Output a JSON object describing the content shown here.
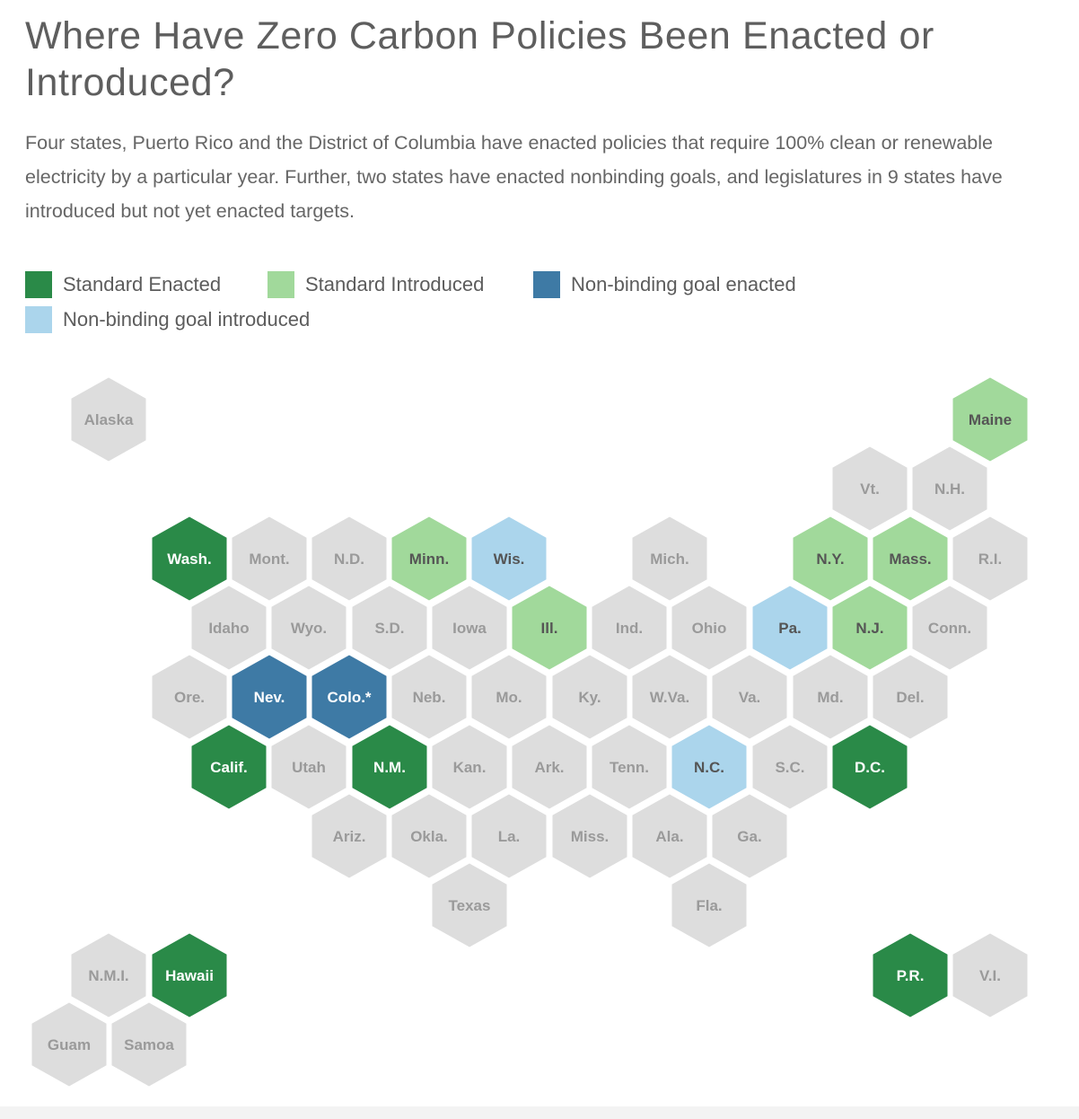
{
  "title": "Where Have Zero Carbon Policies Been Enacted or Introduced?",
  "description": "Four states, Puerto Rico and the District of Columbia have enacted policies that require 100% clean or renewable electricity by a particular year. Further, two states have enacted nonbinding goals, and legislatures in 9 states have introduced but not yet enacted targets.",
  "legend": [
    {
      "key": "enacted",
      "label": "Standard Enacted",
      "color": "#2a8a48"
    },
    {
      "key": "introduced",
      "label": "Standard Introduced",
      "color": "#a1d99b"
    },
    {
      "key": "goal_enacted",
      "label": "Non-binding goal enacted",
      "color": "#3e7aa5"
    },
    {
      "key": "goal_introduced",
      "label": "Non-binding goal introduced",
      "color": "#abd5ec"
    }
  ],
  "default_color": "#dddddd",
  "label_colors": {
    "dark_bg": "#ffffff",
    "light_bg": "#555555",
    "gray_bg": "#9a9a9a"
  },
  "states": [
    {
      "label": "Alaska",
      "status": "none"
    },
    {
      "label": "Maine",
      "status": "introduced"
    },
    {
      "label": "Vt.",
      "status": "none"
    },
    {
      "label": "N.H.",
      "status": "none"
    },
    {
      "label": "Wash.",
      "status": "enacted"
    },
    {
      "label": "Mont.",
      "status": "none"
    },
    {
      "label": "N.D.",
      "status": "none"
    },
    {
      "label": "Minn.",
      "status": "introduced"
    },
    {
      "label": "Wis.",
      "status": "goal_introduced"
    },
    {
      "label": "Mich.",
      "status": "none"
    },
    {
      "label": "N.Y.",
      "status": "introduced"
    },
    {
      "label": "Mass.",
      "status": "introduced"
    },
    {
      "label": "R.I.",
      "status": "none"
    },
    {
      "label": "Idaho",
      "status": "none"
    },
    {
      "label": "Wyo.",
      "status": "none"
    },
    {
      "label": "S.D.",
      "status": "none"
    },
    {
      "label": "Iowa",
      "status": "none"
    },
    {
      "label": "Ill.",
      "status": "introduced"
    },
    {
      "label": "Ind.",
      "status": "none"
    },
    {
      "label": "Ohio",
      "status": "none"
    },
    {
      "label": "Pa.",
      "status": "goal_introduced"
    },
    {
      "label": "N.J.",
      "status": "introduced"
    },
    {
      "label": "Conn.",
      "status": "none"
    },
    {
      "label": "Ore.",
      "status": "none"
    },
    {
      "label": "Nev.",
      "status": "goal_enacted"
    },
    {
      "label": "Colo.*",
      "status": "goal_enacted"
    },
    {
      "label": "Neb.",
      "status": "none"
    },
    {
      "label": "Mo.",
      "status": "none"
    },
    {
      "label": "Ky.",
      "status": "none"
    },
    {
      "label": "W.Va.",
      "status": "none"
    },
    {
      "label": "Va.",
      "status": "none"
    },
    {
      "label": "Md.",
      "status": "none"
    },
    {
      "label": "Del.",
      "status": "none"
    },
    {
      "label": "Calif.",
      "status": "enacted"
    },
    {
      "label": "Utah",
      "status": "none"
    },
    {
      "label": "N.M.",
      "status": "enacted"
    },
    {
      "label": "Kan.",
      "status": "none"
    },
    {
      "label": "Ark.",
      "status": "none"
    },
    {
      "label": "Tenn.",
      "status": "none"
    },
    {
      "label": "N.C.",
      "status": "goal_introduced"
    },
    {
      "label": "S.C.",
      "status": "none"
    },
    {
      "label": "D.C.",
      "status": "enacted"
    },
    {
      "label": "Ariz.",
      "status": "none"
    },
    {
      "label": "Okla.",
      "status": "none"
    },
    {
      "label": "La.",
      "status": "none"
    },
    {
      "label": "Miss.",
      "status": "none"
    },
    {
      "label": "Ala.",
      "status": "none"
    },
    {
      "label": "Ga.",
      "status": "none"
    },
    {
      "label": "Texas",
      "status": "none"
    },
    {
      "label": "Fla.",
      "status": "none"
    },
    {
      "label": "N.M.I.",
      "status": "none"
    },
    {
      "label": "Hawaii",
      "status": "enacted"
    },
    {
      "label": "P.R.",
      "status": "enacted"
    },
    {
      "label": "V.I.",
      "status": "none"
    },
    {
      "label": "Guam",
      "status": "none"
    },
    {
      "label": "Samoa",
      "status": "none"
    }
  ]
}
